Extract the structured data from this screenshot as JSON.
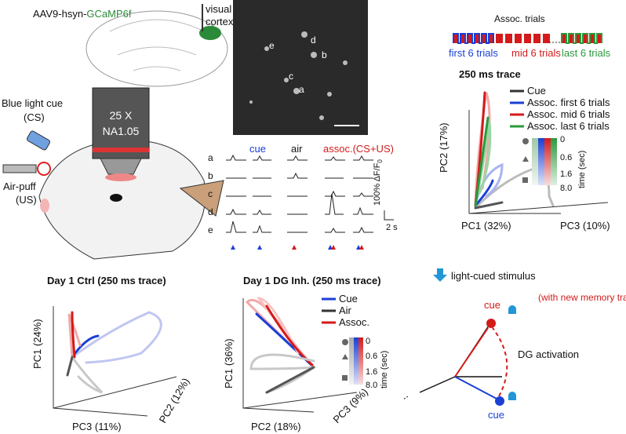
{
  "setup": {
    "virus_prefix": "AAV9-hsyn-",
    "virus_name": "GCaMP6f",
    "region_1": "visual",
    "region_2": "cortex",
    "objective_mag": "25 X",
    "objective_na": "NA1.05",
    "cs_1": "Blue light cue",
    "cs_2": "(CS)",
    "us_1": "Air-puff",
    "us_2": "(US)"
  },
  "imaging": {
    "cell_labels": [
      "e",
      "d",
      "b",
      "c",
      "a"
    ],
    "trace_headers": [
      "cue",
      "air",
      "assoc.(CS+US)"
    ],
    "rows": [
      "a",
      "b",
      "c",
      "d",
      "e"
    ],
    "scale_y": "100% ΔF/F",
    "scale_y_sub": "0",
    "scale_x": "2 s"
  },
  "session_pca": {
    "trials_title": "Assoc. trials",
    "groups": [
      "first 6 trials",
      "mid 6 trials",
      "last 6 trials"
    ],
    "title": "250 ms trace",
    "legend": [
      "Cue",
      "Assoc. first 6 trials",
      "Assoc. mid 6 trials",
      "Assoc. last 6 trials"
    ],
    "time_ticks": [
      "0",
      "0.6",
      "1.6",
      "8.0"
    ],
    "time_label": "time (sec)",
    "axes": [
      "PC2 (17%)",
      "PC1 (32%)",
      "PC3 (10%)"
    ]
  },
  "ctrl_pca": {
    "title": "Day 1 Ctrl (250 ms trace)",
    "axes": [
      "PC1 (24%)",
      "PC3 (11%)",
      "PC2 (12%)"
    ]
  },
  "inh_pca": {
    "title": "Day 1 DG Inh. (250 ms trace)",
    "legend": [
      "Cue",
      "Air",
      "Assoc."
    ],
    "time_ticks": [
      "0",
      "0.6",
      "1.6",
      "8.0"
    ],
    "time_label": "time (sec)",
    "axes": [
      "PC1 (36%)",
      "PC2 (18%)",
      "PC3 (9%)"
    ]
  },
  "model": {
    "title": "light-cued stimulus",
    "cue_top": "cue",
    "note": "(with new memory traces)",
    "arrow_label": "DG activation",
    "cue_bottom": "cue"
  }
}
